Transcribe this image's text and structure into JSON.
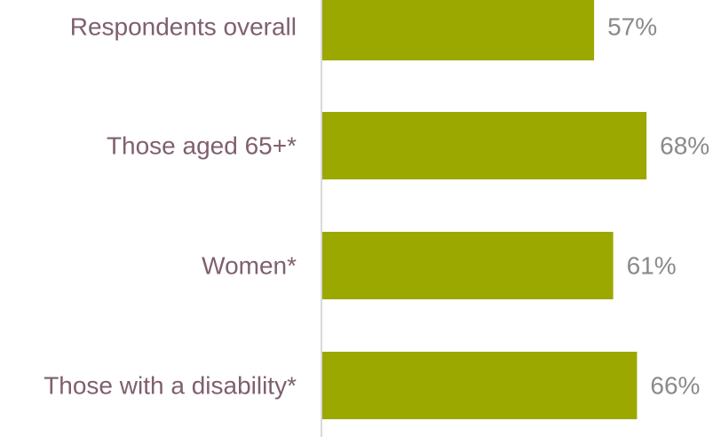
{
  "chart_data": {
    "type": "bar",
    "orientation": "horizontal",
    "categories": [
      "Respondents overall",
      "Those aged 65+*",
      "Women*",
      "Those with a disability*"
    ],
    "values": [
      57,
      68,
      61,
      66
    ],
    "value_labels": [
      "57%",
      "68%",
      "61%",
      "66%"
    ],
    "title": "",
    "xlabel": "",
    "ylabel": "",
    "xlim": [
      0,
      100
    ],
    "grid": false,
    "legend": "none",
    "colors": {
      "bar": "#9BA800",
      "category_text": "#7F5F6F",
      "value_text": "#8A8A8A",
      "axis": "#D9D9D9"
    }
  }
}
